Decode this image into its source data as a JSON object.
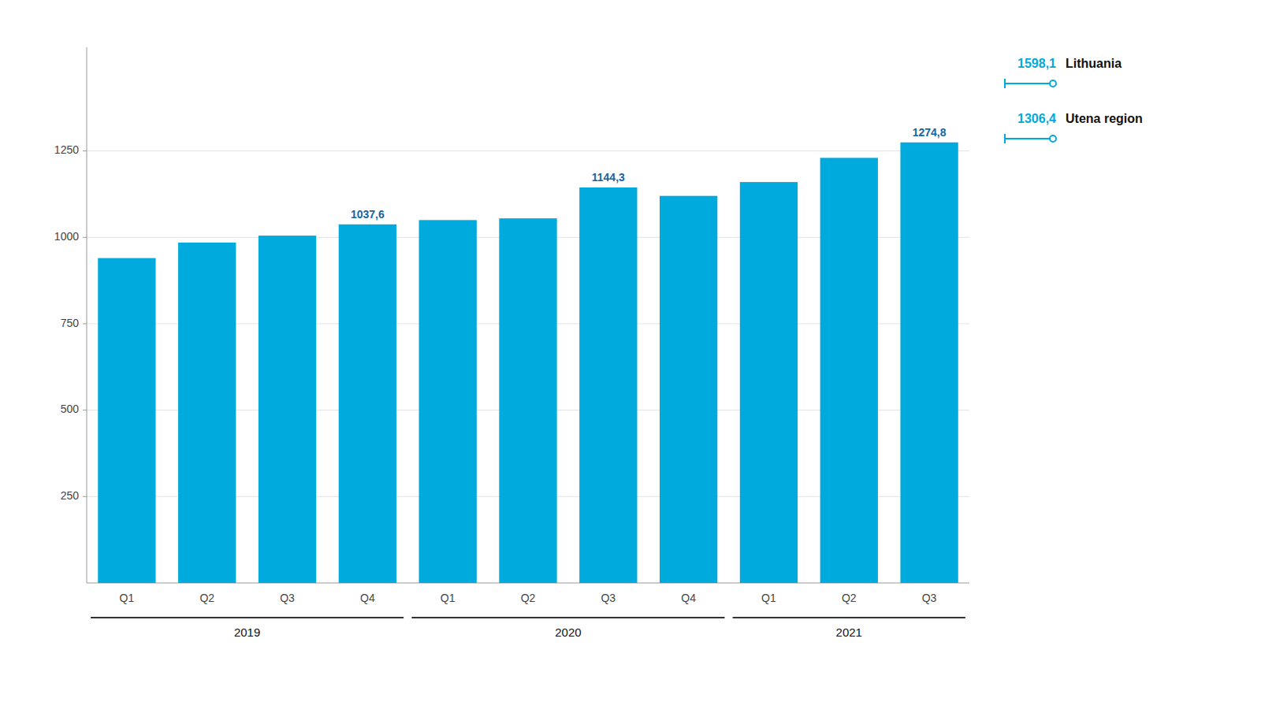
{
  "chart_data": {
    "type": "bar",
    "categories": [
      "Q1",
      "Q2",
      "Q3",
      "Q4",
      "Q1",
      "Q2",
      "Q3",
      "Q4",
      "Q1",
      "Q2",
      "Q3"
    ],
    "groups": [
      {
        "label": "2019",
        "indices": [
          0,
          1,
          2,
          3
        ]
      },
      {
        "label": "2020",
        "indices": [
          4,
          5,
          6,
          7
        ]
      },
      {
        "label": "2021",
        "indices": [
          8,
          9,
          10
        ]
      }
    ],
    "values": [
      940,
      985,
      1005,
      1037.6,
      1050,
      1055,
      1144.3,
      1120,
      1160,
      1230,
      1274.8
    ],
    "value_labels": [
      null,
      null,
      null,
      "1037,6",
      null,
      null,
      "1144,3",
      null,
      null,
      null,
      "1274,8"
    ],
    "color": "#00AADD",
    "ylim": [
      0,
      1550
    ],
    "yticks": [
      250,
      500,
      750,
      1000,
      1250
    ],
    "grid": true,
    "legend": "top-right",
    "legend_items": [
      {
        "value_label": "1598,1",
        "text": "Lithuania"
      },
      {
        "value_label": "1306,4",
        "text": "Utena region"
      }
    ]
  }
}
